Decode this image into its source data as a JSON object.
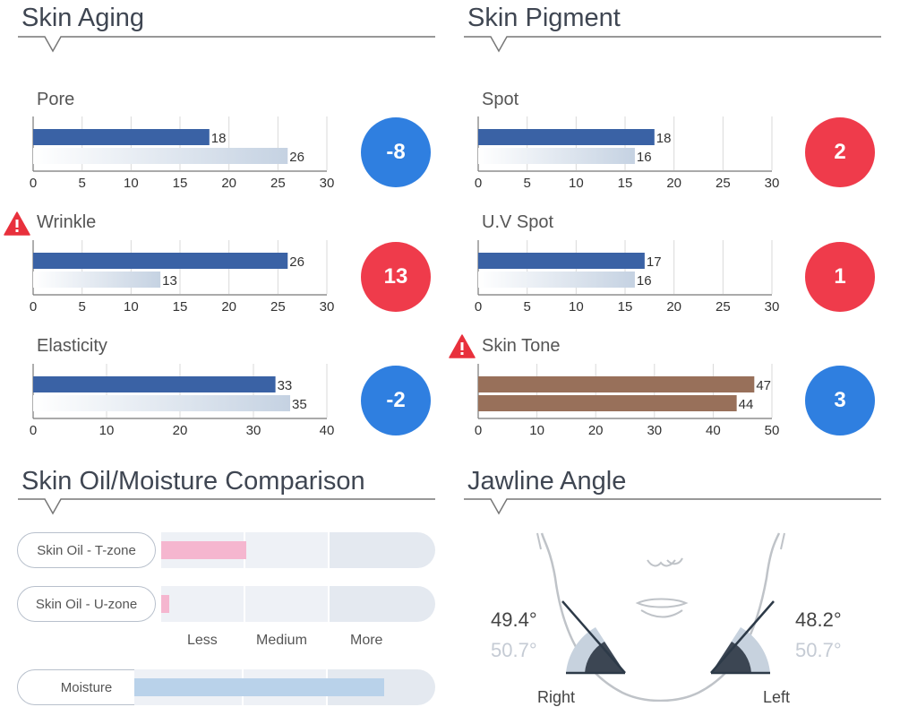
{
  "sections": {
    "skin_aging": "Skin Aging",
    "skin_pigment": "Skin Pigment",
    "oil_moisture": "Skin Oil/Moisture Comparison",
    "jawline": "Jawline Angle"
  },
  "colors": {
    "current_bar": "#3a62a5",
    "skin_tone_bar": "#98705a",
    "badge_red": "#ef3b4b",
    "badge_blue": "#2f7fe0",
    "oil_fill": "#f5b6cf",
    "moisture_fill": "#b9d2ea"
  },
  "chart_data": [
    {
      "id": "pore",
      "type": "bar",
      "title": "Pore",
      "values": [
        18,
        26
      ],
      "ticks": [
        0,
        5,
        10,
        15,
        20,
        25,
        30
      ],
      "xlim": [
        0,
        30
      ],
      "diff": "-8",
      "badge": "blue",
      "warning": false
    },
    {
      "id": "wrinkle",
      "type": "bar",
      "title": "Wrinkle",
      "values": [
        26,
        13
      ],
      "ticks": [
        0,
        5,
        10,
        15,
        20,
        25,
        30
      ],
      "xlim": [
        0,
        30
      ],
      "diff": "13",
      "badge": "red",
      "warning": true
    },
    {
      "id": "elasticity",
      "type": "bar",
      "title": "Elasticity",
      "values": [
        33,
        35
      ],
      "ticks": [
        0,
        10,
        20,
        30,
        40
      ],
      "xlim": [
        0,
        40
      ],
      "diff": "-2",
      "badge": "blue",
      "warning": false
    },
    {
      "id": "spot",
      "type": "bar",
      "title": "Spot",
      "values": [
        18,
        16
      ],
      "ticks": [
        0,
        5,
        10,
        15,
        20,
        25,
        30
      ],
      "xlim": [
        0,
        30
      ],
      "diff": "2",
      "badge": "red",
      "warning": false
    },
    {
      "id": "uvspot",
      "type": "bar",
      "title": "U.V Spot",
      "values": [
        17,
        16
      ],
      "ticks": [
        0,
        5,
        10,
        15,
        20,
        25,
        30
      ],
      "xlim": [
        0,
        30
      ],
      "diff": "1",
      "badge": "red",
      "warning": false
    },
    {
      "id": "skintone",
      "type": "bar",
      "title": "Skin Tone",
      "values": [
        47,
        44
      ],
      "ticks": [
        0,
        10,
        20,
        30,
        40,
        50
      ],
      "xlim": [
        0,
        50
      ],
      "diff": "3",
      "badge": "blue",
      "warning": true,
      "tone": true
    }
  ],
  "oil_moisture": {
    "rows": [
      {
        "label": "Skin Oil - T-zone",
        "level": 0.31,
        "kind": "oil"
      },
      {
        "label": "Skin Oil - U-zone",
        "level": 0.03,
        "kind": "oil"
      },
      {
        "label": "Moisture",
        "level": 0.83,
        "kind": "moisture"
      }
    ],
    "scale": [
      "Less",
      "Medium",
      "More"
    ]
  },
  "jawline": {
    "right": {
      "label": "Right",
      "value": "49.4°",
      "reference": "50.7°"
    },
    "left": {
      "label": "Left",
      "value": "48.2°",
      "reference": "50.7°"
    }
  }
}
